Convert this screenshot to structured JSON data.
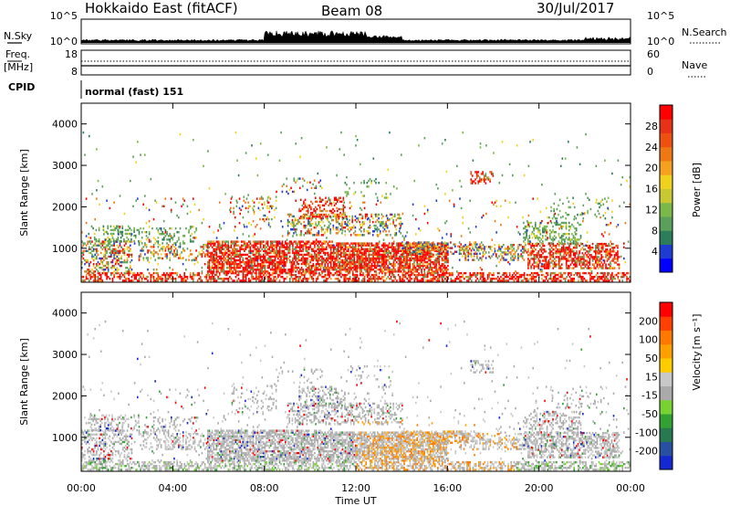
{
  "header": {
    "radar": "Hokkaido East (fitACF)",
    "beam": "Beam 08",
    "date": "30/Jul/2017"
  },
  "aux": {
    "nsky_label": "N.Sky",
    "nsky_ticks": [
      "10^5",
      "10^0"
    ],
    "nsearch_label": "N.Search",
    "nsearch_ticks": [
      "10^5",
      "10^0"
    ],
    "freq_label_line1": "Freq.",
    "freq_label_line2": "[MHz]",
    "freq_ticks": [
      "18",
      "8"
    ],
    "nave_label": "Nave",
    "nave_ticks": [
      "60",
      "0"
    ],
    "cpid_label": "CPID",
    "cpid_value": "normal (fast) 151"
  },
  "chart_data": [
    {
      "type": "heatmap",
      "ylabel": "Slant Range [km]",
      "x_ticks": [
        "00:00",
        "04:00",
        "08:00",
        "12:00",
        "16:00",
        "20:00",
        "00:00"
      ],
      "y_ticks": [
        "1000",
        "2000",
        "3000",
        "4000"
      ],
      "y_values": [
        1000,
        2000,
        3000,
        4000
      ],
      "ylim": [
        180,
        4500
      ],
      "xlim_hours": [
        0,
        24
      ],
      "colorbar": {
        "label": "Power [dB]",
        "ticks": [
          "4",
          "8",
          "12",
          "16",
          "20",
          "24",
          "28"
        ],
        "colors": [
          "#0000ff",
          "#1e3cd2",
          "#2e7d5a",
          "#5aa05a",
          "#7ab84a",
          "#c8c832",
          "#f0d21e",
          "#f5a020",
          "#f07814",
          "#ee5010",
          "#e83218",
          "#ff0000"
        ]
      }
    },
    {
      "type": "heatmap",
      "ylabel": "Slant Range [km]",
      "x_ticks": [
        "00:00",
        "04:00",
        "08:00",
        "12:00",
        "16:00",
        "20:00",
        "00:00"
      ],
      "y_ticks": [
        "1000",
        "2000",
        "3000",
        "4000"
      ],
      "y_values": [
        1000,
        2000,
        3000,
        4000
      ],
      "ylim": [
        180,
        4500
      ],
      "xlim_hours": [
        0,
        24
      ],
      "xlabel": "Time UT",
      "colorbar": {
        "label": "Velocity",
        "ticks": [
          "200",
          "100",
          "50",
          "15",
          "-15",
          "-50",
          "-100",
          "-200"
        ],
        "colors": [
          "#1428d2",
          "#2850a0",
          "#287850",
          "#32a032",
          "#78d232",
          "#aaaaaa",
          "#c8c8c8",
          "#ffcc00",
          "#ffa000",
          "#ff7800",
          "#ff4000",
          "#ff0000"
        ]
      }
    }
  ]
}
